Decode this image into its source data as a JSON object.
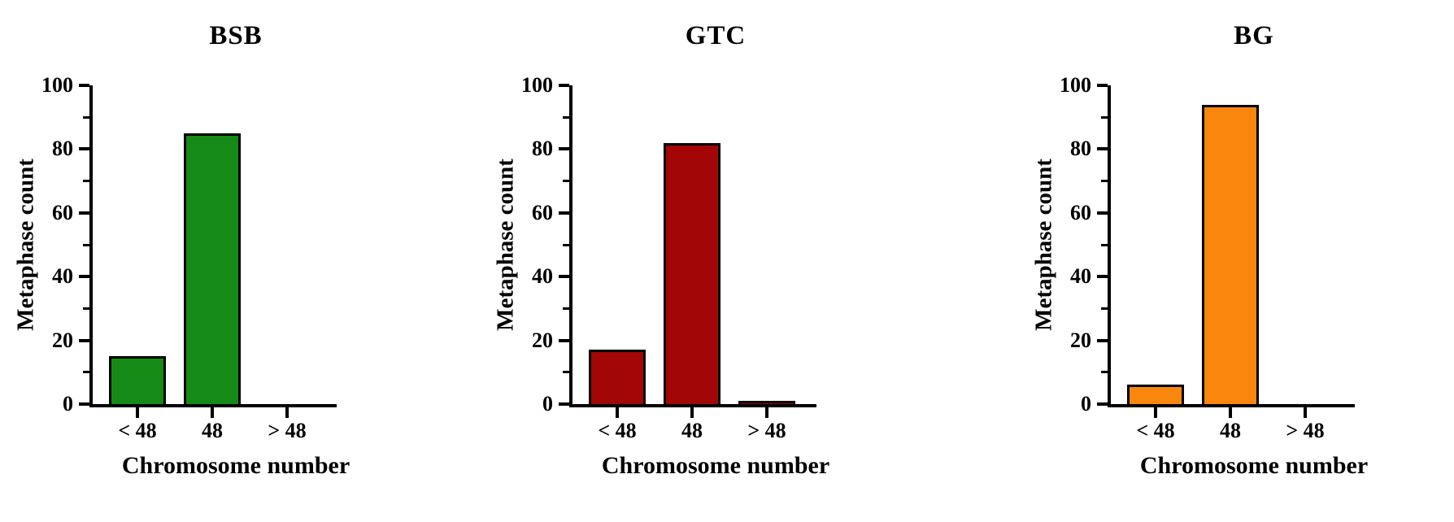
{
  "figure_title": "",
  "chart_data": [
    {
      "type": "bar",
      "title": "BSB",
      "categories": [
        "< 48",
        "48",
        "> 48"
      ],
      "values": [
        15,
        85,
        0
      ],
      "xlabel": "Chromosome number",
      "ylabel": "Metaphase count",
      "ylim": [
        0,
        100
      ],
      "yticks": [
        0,
        20,
        40,
        60,
        80,
        100
      ],
      "yminorticks": [
        10,
        30,
        50,
        70,
        90
      ],
      "bar_color": "#168A16",
      "bar_outline": "#000000",
      "grid": "off",
      "legend": "none"
    },
    {
      "type": "bar",
      "title": "GTC",
      "categories": [
        "< 48",
        "48",
        "> 48"
      ],
      "values": [
        17,
        82,
        1
      ],
      "xlabel": "Chromosome number",
      "ylabel": "Metaphase count",
      "ylim": [
        0,
        100
      ],
      "yticks": [
        0,
        20,
        40,
        60,
        80,
        100
      ],
      "yminorticks": [
        10,
        30,
        50,
        70,
        90
      ],
      "bar_color": "#A20606",
      "bar_outline": "#000000",
      "grid": "off",
      "legend": "none"
    },
    {
      "type": "bar",
      "title": "BG",
      "categories": [
        "< 48",
        "48",
        "> 48"
      ],
      "values": [
        6,
        94,
        0
      ],
      "xlabel": "Chromosome number",
      "ylabel": "Metaphase count",
      "ylim": [
        0,
        100
      ],
      "yticks": [
        0,
        20,
        40,
        60,
        80,
        100
      ],
      "yminorticks": [
        10,
        30,
        50,
        70,
        90
      ],
      "bar_color": "#F9860D",
      "bar_outline": "#000000",
      "grid": "off",
      "legend": "none"
    }
  ]
}
